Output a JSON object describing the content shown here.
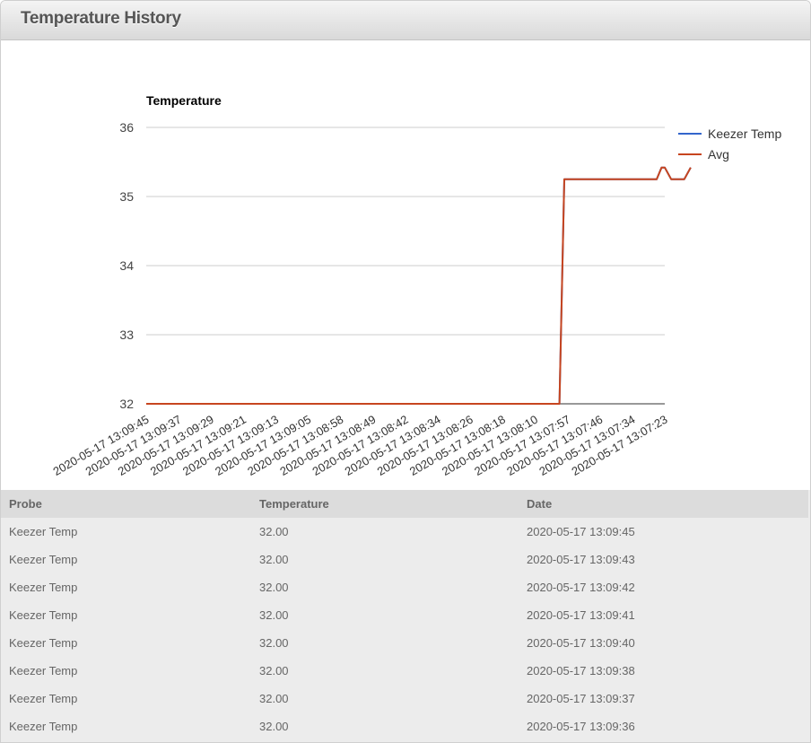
{
  "panel": {
    "title": "Temperature History"
  },
  "chart_data": {
    "type": "line",
    "title": "Temperature",
    "xlabel": "",
    "ylabel": "",
    "ylim": [
      32,
      36
    ],
    "yticks": [
      32,
      33,
      34,
      35,
      36
    ],
    "grid": true,
    "legend_position": "right",
    "categories": [
      "2020-05-17 13:09:45",
      "2020-05-17 13:09:37",
      "2020-05-17 13:09:29",
      "2020-05-17 13:09:21",
      "2020-05-17 13:09:13",
      "2020-05-17 13:09:05",
      "2020-05-17 13:08:58",
      "2020-05-17 13:08:49",
      "2020-05-17 13:08:42",
      "2020-05-17 13:08:34",
      "2020-05-17 13:08:26",
      "2020-05-17 13:08:18",
      "2020-05-17 13:08:10",
      "2020-05-17 13:07:57",
      "2020-05-17 13:07:46",
      "2020-05-17 13:07:34",
      "2020-05-17 13:07:23"
    ],
    "x": [
      0,
      0.5,
      1,
      1.5,
      2,
      2.5,
      3,
      3.5,
      4,
      4.5,
      5,
      5.5,
      6,
      6.5,
      7,
      7.5,
      8,
      8.5,
      9,
      9.5,
      10,
      10.5,
      11,
      11.5,
      12,
      12.5,
      12.75,
      12.9,
      13,
      13.5,
      14,
      14.5,
      15,
      15.5,
      15.75,
      15.9,
      16,
      16.2,
      16.4,
      16.6,
      16.8
    ],
    "series": [
      {
        "name": "Keezer Temp",
        "color": "#3366cc",
        "values": [
          32,
          32,
          32,
          32,
          32,
          32,
          32,
          32,
          32,
          32,
          32,
          32,
          32,
          32,
          32,
          32,
          32,
          32,
          32,
          32,
          32,
          32,
          32,
          32,
          32,
          32,
          32,
          35.25,
          35.25,
          35.25,
          35.25,
          35.25,
          35.25,
          35.25,
          35.25,
          35.42,
          35.42,
          35.25,
          35.25,
          35.25,
          35.42
        ]
      },
      {
        "name": "Avg",
        "color": "#c7451f",
        "values": [
          32,
          32,
          32,
          32,
          32,
          32,
          32,
          32,
          32,
          32,
          32,
          32,
          32,
          32,
          32,
          32,
          32,
          32,
          32,
          32,
          32,
          32,
          32,
          32,
          32,
          32,
          32,
          35.25,
          35.25,
          35.25,
          35.25,
          35.25,
          35.25,
          35.25,
          35.25,
          35.42,
          35.42,
          35.25,
          35.25,
          35.25,
          35.42
        ]
      }
    ]
  },
  "table": {
    "columns": [
      "Probe",
      "Temperature",
      "Date"
    ],
    "rows": [
      [
        "Keezer Temp",
        "32.00",
        "2020-05-17 13:09:45"
      ],
      [
        "Keezer Temp",
        "32.00",
        "2020-05-17 13:09:43"
      ],
      [
        "Keezer Temp",
        "32.00",
        "2020-05-17 13:09:42"
      ],
      [
        "Keezer Temp",
        "32.00",
        "2020-05-17 13:09:41"
      ],
      [
        "Keezer Temp",
        "32.00",
        "2020-05-17 13:09:40"
      ],
      [
        "Keezer Temp",
        "32.00",
        "2020-05-17 13:09:38"
      ],
      [
        "Keezer Temp",
        "32.00",
        "2020-05-17 13:09:37"
      ],
      [
        "Keezer Temp",
        "32.00",
        "2020-05-17 13:09:36"
      ]
    ]
  }
}
